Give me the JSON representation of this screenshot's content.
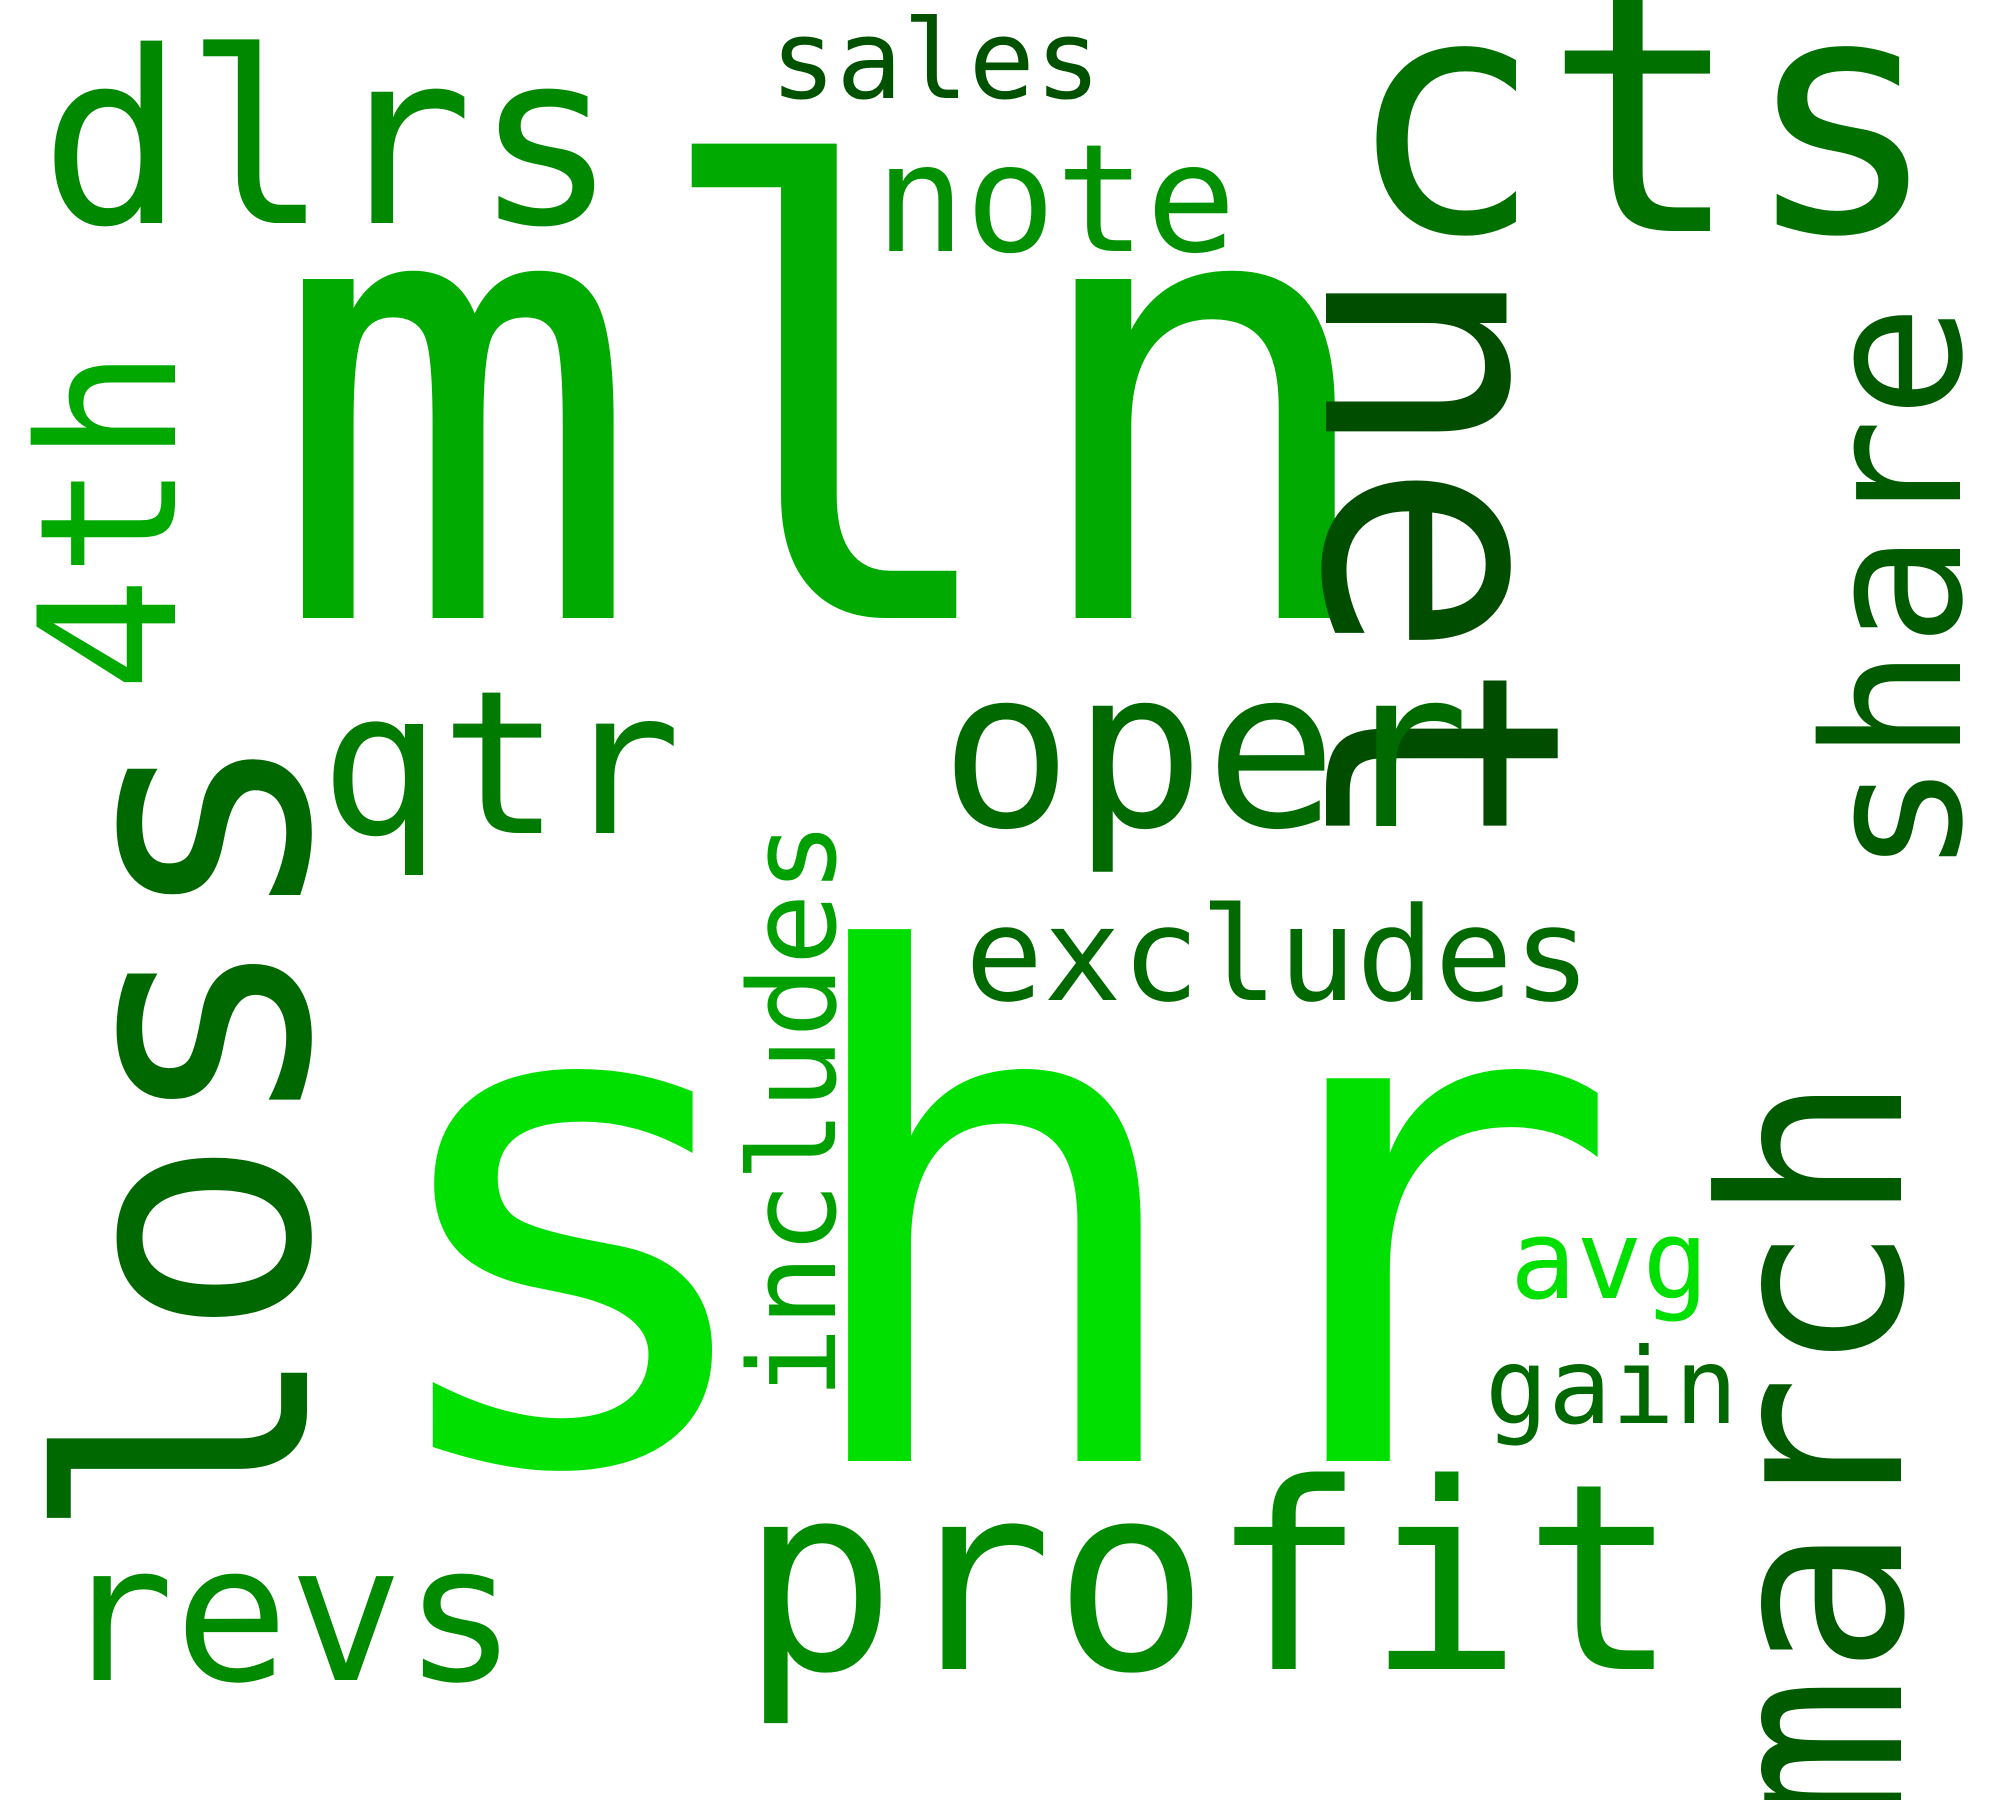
{
  "words": [
    {
      "text": "shr",
      "color": "#00e000"
    },
    {
      "text": "mln",
      "color": "#00aa00"
    },
    {
      "text": "cts",
      "color": "#007000"
    },
    {
      "text": "net",
      "color": "#004d00"
    },
    {
      "text": "loss",
      "color": "#006800"
    },
    {
      "text": "march",
      "color": "#005a00"
    },
    {
      "text": "profit",
      "color": "#008a00"
    },
    {
      "text": "oper",
      "color": "#006a00"
    },
    {
      "text": "qtr",
      "color": "#007a00"
    },
    {
      "text": "dlrs",
      "color": "#008800"
    },
    {
      "text": "revs",
      "color": "#008a00"
    },
    {
      "text": "share",
      "color": "#005a00"
    },
    {
      "text": "4th",
      "color": "#00a800"
    },
    {
      "text": "note",
      "color": "#009000"
    },
    {
      "text": "includes",
      "color": "#00a000"
    },
    {
      "text": "excludes",
      "color": "#006a00"
    },
    {
      "text": "sales",
      "color": "#005200"
    },
    {
      "text": "gain",
      "color": "#006800"
    },
    {
      "text": "avg",
      "color": "#00e000"
    }
  ]
}
